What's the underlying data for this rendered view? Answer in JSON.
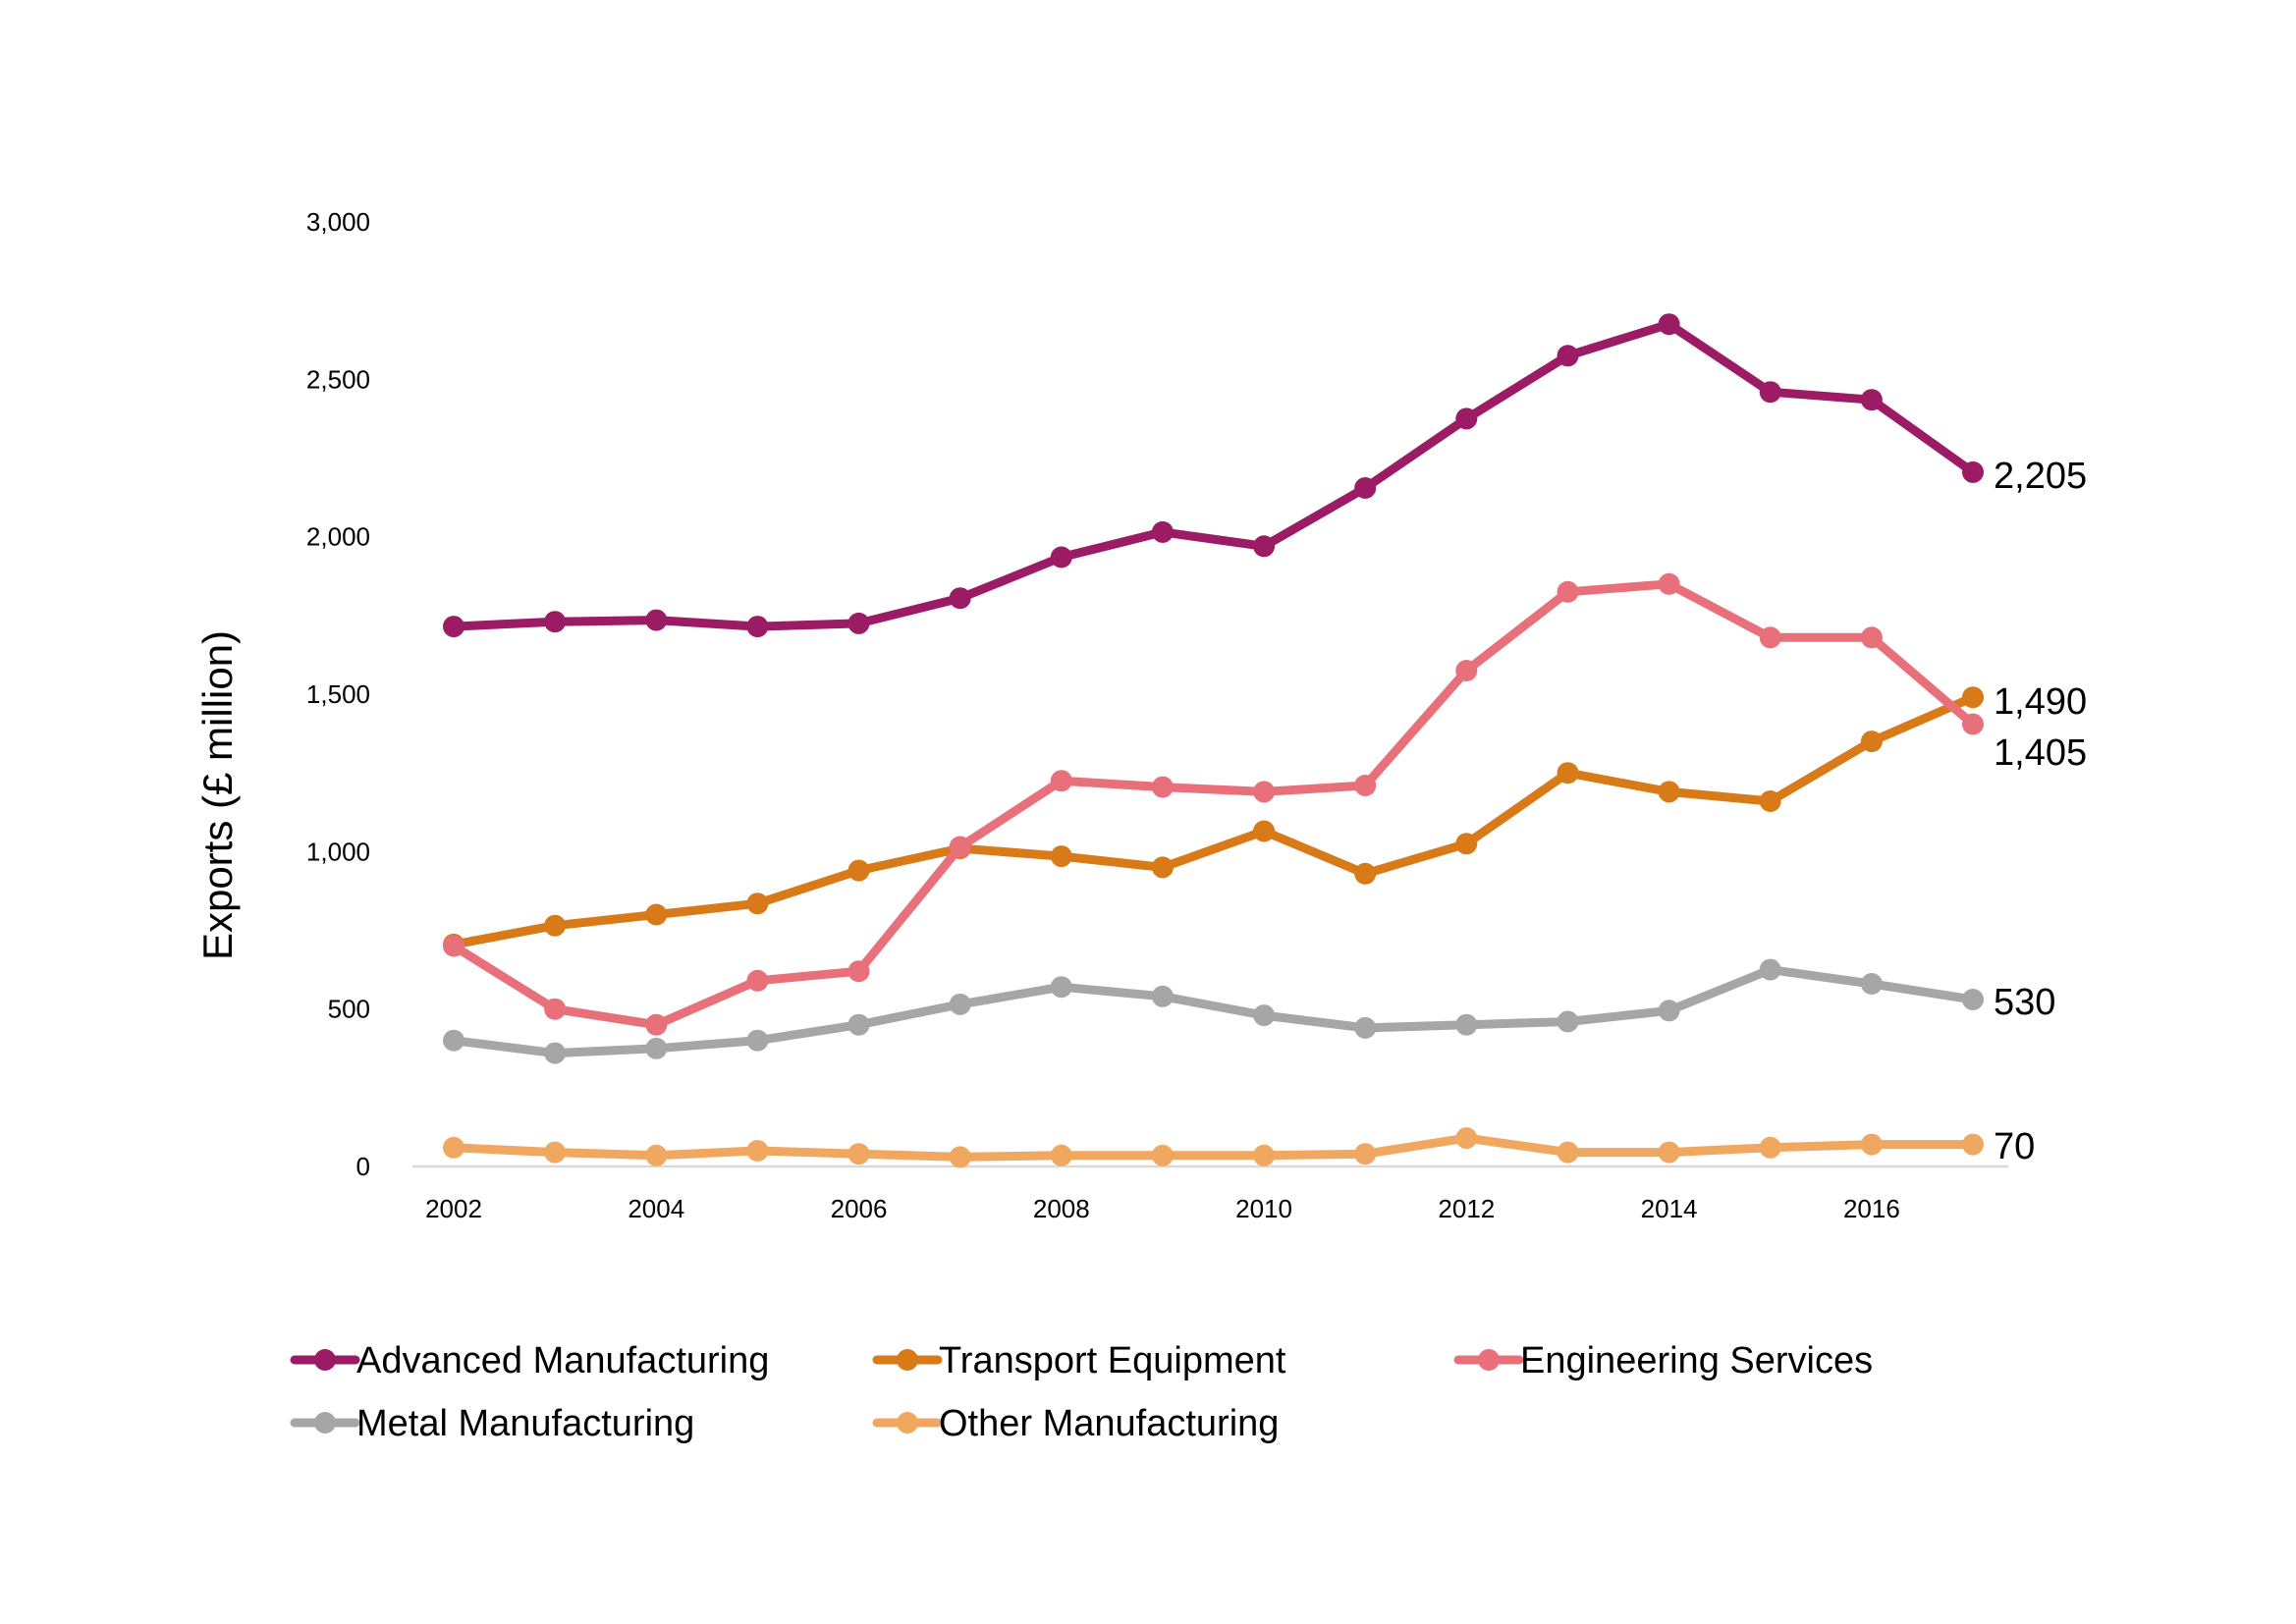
{
  "chart_data": {
    "type": "line",
    "title": "",
    "xlabel": "",
    "ylabel": "Exports (£ million)",
    "x": [
      2002,
      2003,
      2004,
      2005,
      2006,
      2007,
      2008,
      2009,
      2010,
      2011,
      2012,
      2013,
      2014,
      2015,
      2016,
      2017
    ],
    "x_tick_labels": [
      "2002",
      "2004",
      "2006",
      "2008",
      "2010",
      "2012",
      "2014",
      "2016"
    ],
    "y_tick_labels": [
      "0",
      "500",
      "1,000",
      "1,500",
      "2,000",
      "2,500",
      "3,000"
    ],
    "ylim": [
      0,
      3000
    ],
    "grid": false,
    "legend_position": "bottom",
    "series": [
      {
        "name": "Advanced Manufacturing",
        "color": "#9b1b65",
        "values": [
          1715,
          1730,
          1735,
          1715,
          1725,
          1805,
          1935,
          2015,
          1970,
          2155,
          2375,
          2575,
          2675,
          2460,
          2435,
          2205
        ],
        "end_label": "2,205"
      },
      {
        "name": "Transport Equipment",
        "color": "#d77a17",
        "values": [
          705,
          765,
          800,
          835,
          940,
          1010,
          985,
          950,
          1065,
          930,
          1025,
          1250,
          1190,
          1160,
          1350,
          1490
        ],
        "end_label": "1,490"
      },
      {
        "name": "Engineering Services",
        "color": "#e8707b",
        "values": [
          700,
          500,
          450,
          590,
          620,
          1015,
          1225,
          1205,
          1190,
          1210,
          1575,
          1825,
          1850,
          1680,
          1680,
          1405
        ],
        "end_label": "1,405"
      },
      {
        "name": "Metal Manufacturing",
        "color": "#a6a6a6",
        "values": [
          400,
          360,
          375,
          400,
          450,
          515,
          570,
          540,
          480,
          440,
          450,
          460,
          495,
          625,
          580,
          530
        ],
        "end_label": "530"
      },
      {
        "name": "Other Manufacturing",
        "color": "#f0a860",
        "values": [
          60,
          45,
          35,
          50,
          40,
          30,
          35,
          35,
          35,
          40,
          90,
          45,
          45,
          60,
          70,
          70
        ],
        "end_label": "70"
      }
    ]
  }
}
